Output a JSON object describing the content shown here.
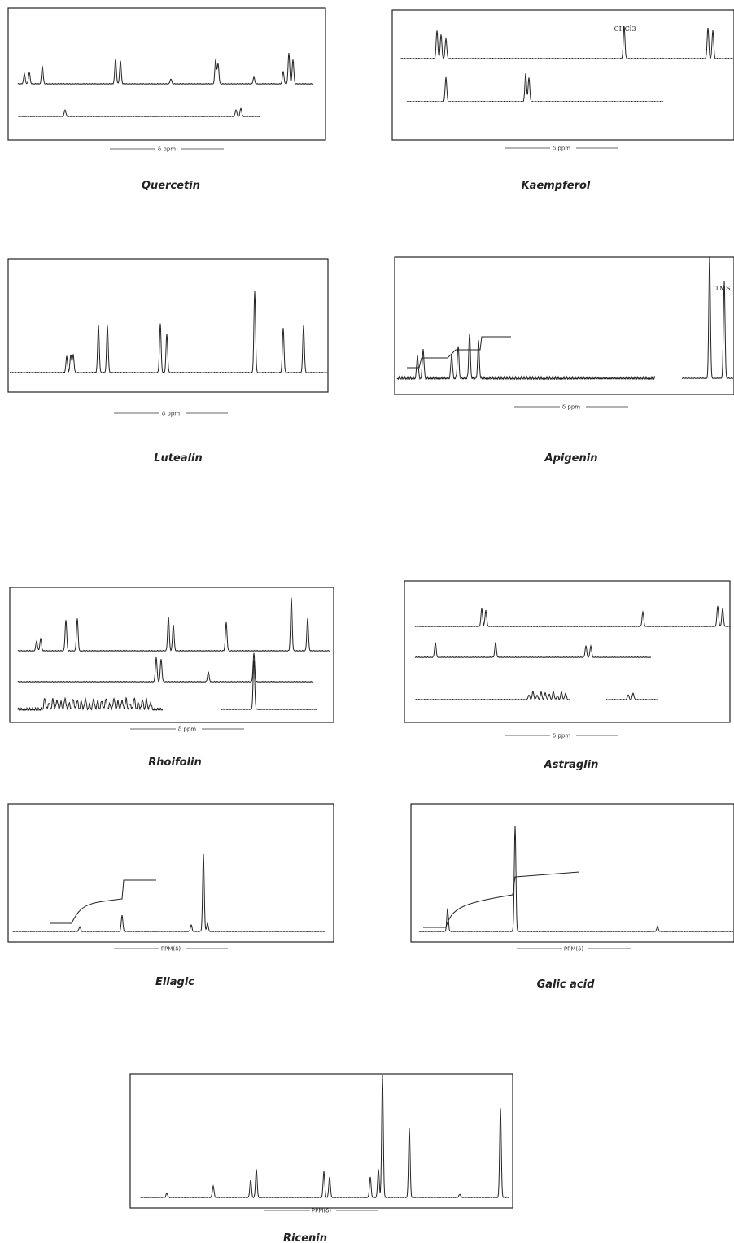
{
  "panels": [
    {
      "caption": "Quercetin",
      "scale_label": "δ ppm"
    },
    {
      "caption": "Kaempferol",
      "scale_label": "δ ppm",
      "peak_label": "CHCl3"
    },
    {
      "caption": "Lutealin",
      "scale_label": "δ ppm"
    },
    {
      "caption": "Apigenin",
      "scale_label": "δ ppm",
      "peak_label": "TMS"
    },
    {
      "caption": "Rhoifolin",
      "scale_label": "δ ppm"
    },
    {
      "caption": "Astraglin",
      "scale_label": "δ ppm"
    },
    {
      "caption": "Ellagic",
      "scale_label": "PPM(δ)"
    },
    {
      "caption": "Galic acid",
      "scale_label": "PPM(δ)"
    },
    {
      "caption": "Ricenin",
      "scale_label": "PPM(δ)"
    }
  ]
}
